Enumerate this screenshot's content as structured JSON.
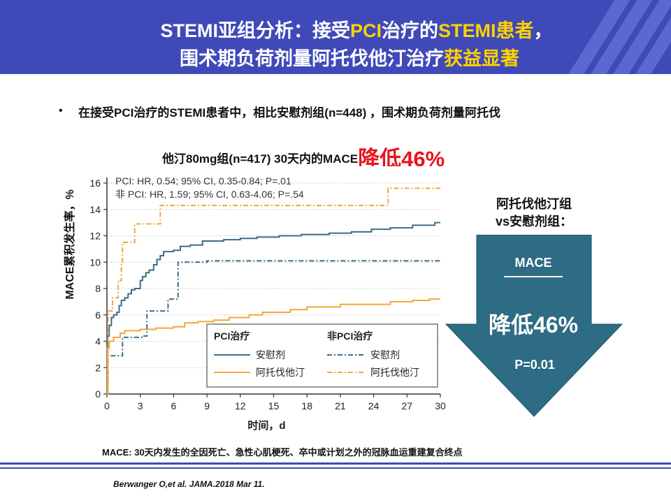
{
  "header": {
    "line1_a": "STEMI亚组分析：接受",
    "line1_b": "PCI",
    "line1_c": "治疗的",
    "line1_d": "STEMI患者",
    "line1_e": "，",
    "line2_a": "围术期负荷剂量阿托伐他汀治疗",
    "line2_b": "获益显著"
  },
  "bullet": {
    "dot": "•",
    "line1": "在接受PCI治疗的STEMI患者中，相比安慰剂组(n=448)  ，围术期负荷剂量阿托伐",
    "line2": "他汀80mg组(n=417)  30天内的MACE",
    "line2_highlight": "降低46%"
  },
  "colors": {
    "header_bg": "#3f49b8",
    "highlight_yellow": "#ffd200",
    "red": "#e8141f",
    "arrow_fill": "#2e6b84",
    "placebo": "#3a6f86",
    "atorva": "#f5a53a"
  },
  "chart_data": {
    "type": "line",
    "title": "",
    "xlabel": "时间，d",
    "ylabel": "MACE累积发生率，%",
    "xlim": [
      0,
      30
    ],
    "ylim": [
      0,
      16
    ],
    "xticks": [
      0,
      3,
      6,
      9,
      12,
      15,
      18,
      21,
      24,
      27,
      30
    ],
    "yticks": [
      0,
      2,
      4,
      6,
      8,
      10,
      12,
      14,
      16
    ],
    "annotations": [
      "PCI: HR, 0.54; 95% CI, 0.35-0.84; P=.01",
      "非 PCI: HR, 1.59; 95% CI, 0.63-4.06; P=.54"
    ],
    "legend": {
      "group1": "PCI治疗",
      "group2": "非PCI治疗",
      "placebo": "安慰剂",
      "atorvastatin": "阿托伐他汀"
    },
    "series": [
      {
        "name": "PCI治疗 安慰剂",
        "group": "pci",
        "drug": "placebo",
        "points": [
          [
            0,
            0
          ],
          [
            0.05,
            4.4
          ],
          [
            0.2,
            5.2
          ],
          [
            0.4,
            5.8
          ],
          [
            0.6,
            6.0
          ],
          [
            0.9,
            6.2
          ],
          [
            1.1,
            6.7
          ],
          [
            1.3,
            7.1
          ],
          [
            1.6,
            7.3
          ],
          [
            1.9,
            7.6
          ],
          [
            2.2,
            7.9
          ],
          [
            2.5,
            8.0
          ],
          [
            3.0,
            8.6
          ],
          [
            3.2,
            8.9
          ],
          [
            3.5,
            9.2
          ],
          [
            3.8,
            9.4
          ],
          [
            4.2,
            9.8
          ],
          [
            4.5,
            10.2
          ],
          [
            4.8,
            10.5
          ],
          [
            5.1,
            10.8
          ],
          [
            6.0,
            10.9
          ],
          [
            6.6,
            11.2
          ],
          [
            7.5,
            11.3
          ],
          [
            8.6,
            11.6
          ],
          [
            10.5,
            11.7
          ],
          [
            12.0,
            11.8
          ],
          [
            13.5,
            11.9
          ],
          [
            15.5,
            12.0
          ],
          [
            17.5,
            12.1
          ],
          [
            20.0,
            12.2
          ],
          [
            22.0,
            12.3
          ],
          [
            23.8,
            12.5
          ],
          [
            25.5,
            12.6
          ],
          [
            27.5,
            12.8
          ],
          [
            29.5,
            13.0
          ],
          [
            30,
            13.0
          ]
        ]
      },
      {
        "name": "PCI治疗 阿托伐他汀",
        "group": "pci",
        "drug": "atorva",
        "points": [
          [
            0,
            0
          ],
          [
            0.05,
            3.5
          ],
          [
            0.2,
            4.0
          ],
          [
            0.6,
            4.3
          ],
          [
            1.2,
            4.6
          ],
          [
            1.6,
            4.8
          ],
          [
            3.0,
            4.9
          ],
          [
            4.4,
            5.0
          ],
          [
            6.0,
            5.1
          ],
          [
            7.0,
            5.4
          ],
          [
            8.2,
            5.5
          ],
          [
            9.6,
            5.6
          ],
          [
            11.0,
            5.8
          ],
          [
            12.8,
            6.0
          ],
          [
            14.0,
            6.2
          ],
          [
            16.5,
            6.4
          ],
          [
            18.0,
            6.6
          ],
          [
            21.0,
            6.8
          ],
          [
            25.5,
            7.0
          ],
          [
            27.5,
            7.1
          ],
          [
            29.0,
            7.2
          ],
          [
            30,
            7.2
          ]
        ]
      },
      {
        "name": "非PCI治疗 安慰剂",
        "group": "non",
        "drug": "placebo",
        "points": [
          [
            0,
            0
          ],
          [
            0.1,
            2.9
          ],
          [
            1.0,
            2.9
          ],
          [
            1.4,
            4.3
          ],
          [
            3.2,
            4.4
          ],
          [
            3.6,
            6.3
          ],
          [
            5.2,
            6.3
          ],
          [
            5.5,
            7.2
          ],
          [
            6.4,
            10.0
          ],
          [
            9.0,
            10.1
          ],
          [
            15.0,
            10.1
          ],
          [
            22.0,
            10.1
          ],
          [
            30,
            10.1
          ]
        ]
      },
      {
        "name": "非PCI治疗 阿托伐他汀",
        "group": "non",
        "drug": "atorva",
        "points": [
          [
            0,
            0
          ],
          [
            0.1,
            6.3
          ],
          [
            0.5,
            7.3
          ],
          [
            1.0,
            8.6
          ],
          [
            1.3,
            10.0
          ],
          [
            1.4,
            11.5
          ],
          [
            2.3,
            11.5
          ],
          [
            2.5,
            12.9
          ],
          [
            4.5,
            12.9
          ],
          [
            4.8,
            14.3
          ],
          [
            25.0,
            14.3
          ],
          [
            25.3,
            15.6
          ],
          [
            30,
            15.6
          ]
        ]
      }
    ]
  },
  "arrow": {
    "title1": "阿托伐他汀组",
    "title2": "vs安慰剂组：",
    "mace": "MACE",
    "reduction": "降低46%",
    "pvalue": "P=0.01"
  },
  "footnote": "MACE: 30天内发生的全因死亡、急性心肌梗死、卒中或计划之外的冠脉血运重建复合终点",
  "citation": "Berwanger O,et al. JAMA.2018  Mar 11."
}
